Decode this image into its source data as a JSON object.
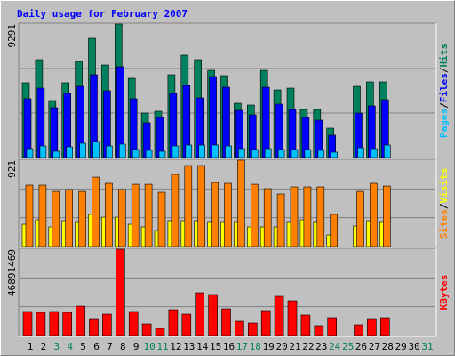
{
  "chart_data": [
    {
      "type": "bar",
      "title": "Daily usage for February 2007",
      "title_color": "#0000ff",
      "ylim": [
        0,
        9291
      ],
      "yticks": [
        9291
      ],
      "grid": true,
      "legend_separator": "/",
      "separator_color": "#000000",
      "series": [
        {
          "name": "Pages",
          "color": "#00c0ff",
          "values": [
            619,
            805,
            434,
            743,
            991,
            1115,
            805,
            929,
            557,
            496,
            434,
            805,
            867,
            867,
            867,
            805,
            619,
            557,
            619,
            557,
            557,
            557,
            496,
            372,
            0,
            681,
            619,
            867,
            null,
            null,
            null
          ]
        },
        {
          "name": "Files",
          "color": "#0000ff",
          "values": [
            4088,
            4831,
            3469,
            4460,
            4955,
            5760,
            4646,
            6318,
            4088,
            2416,
            2787,
            4460,
            5017,
            4150,
            5637,
            4893,
            3283,
            2973,
            4893,
            3716,
            3345,
            2787,
            2601,
            1549,
            0,
            3097,
            3593,
            4026,
            null,
            null,
            null
          ]
        },
        {
          "name": "Hits",
          "color": "#00805c",
          "values": [
            5203,
            6813,
            3964,
            5203,
            6689,
            8300,
            6442,
            9291,
            5513,
            3097,
            3221,
            5760,
            7123,
            6813,
            6070,
            5698,
            3778,
            3654,
            6070,
            4707,
            4831,
            3345,
            3345,
            2044,
            0,
            4955,
            5265,
            5265,
            null,
            null,
            null
          ]
        }
      ]
    },
    {
      "type": "bar",
      "ylim": [
        0,
        921
      ],
      "yticks": [
        921
      ],
      "grid": true,
      "legend_separator": "/",
      "series": [
        {
          "name": "Sites",
          "color": "#ff8000",
          "values": [
            655,
            655,
            588,
            607,
            588,
            740,
            674,
            607,
            664,
            664,
            579,
            769,
            864,
            864,
            683,
            674,
            921,
            664,
            617,
            560,
            636,
            636,
            636,
            342,
            0,
            588,
            674,
            645,
            null,
            null,
            null
          ]
        },
        {
          "name": "Visits",
          "color": "#ffff00",
          "values": [
            237,
            285,
            209,
            275,
            266,
            342,
            313,
            313,
            237,
            209,
            171,
            275,
            275,
            275,
            266,
            266,
            266,
            209,
            209,
            209,
            266,
            285,
            266,
            123,
            0,
            218,
            275,
            266,
            null,
            null,
            null
          ]
        }
      ]
    },
    {
      "type": "bar",
      "ylim": [
        0,
        46891469
      ],
      "yticks": [
        46891469
      ],
      "grid": true,
      "series": [
        {
          "name": "KBytes",
          "color": "#ff0000",
          "values": [
            13050000,
            12570000,
            13050000,
            12570000,
            15950000,
            9180000,
            11600000,
            46891469,
            13050000,
            6280000,
            3870000,
            14020000,
            11600000,
            23200000,
            22240000,
            14500000,
            7730000,
            6770000,
            13540000,
            21270000,
            18850000,
            11120000,
            5320000,
            9670000,
            0,
            5800000,
            9180000,
            9670000,
            null,
            null,
            null
          ]
        }
      ],
      "categories": [
        "1",
        "2",
        "3",
        "4",
        "5",
        "6",
        "7",
        "8",
        "9",
        "10",
        "11",
        "12",
        "13",
        "14",
        "15",
        "16",
        "17",
        "18",
        "19",
        "20",
        "21",
        "22",
        "23",
        "24",
        "25",
        "26",
        "27",
        "28",
        "29",
        "30",
        "31"
      ],
      "category_colors": [
        "#000000",
        "#000000",
        "#00805c",
        "#00805c",
        "#000000",
        "#000000",
        "#000000",
        "#000000",
        "#000000",
        "#00805c",
        "#00805c",
        "#000000",
        "#000000",
        "#000000",
        "#000000",
        "#000000",
        "#00805c",
        "#00805c",
        "#000000",
        "#000000",
        "#000000",
        "#000000",
        "#000000",
        "#00805c",
        "#00805c",
        "#000000",
        "#000000",
        "#000000",
        "#000000",
        "#000000",
        "#00805c"
      ]
    }
  ]
}
